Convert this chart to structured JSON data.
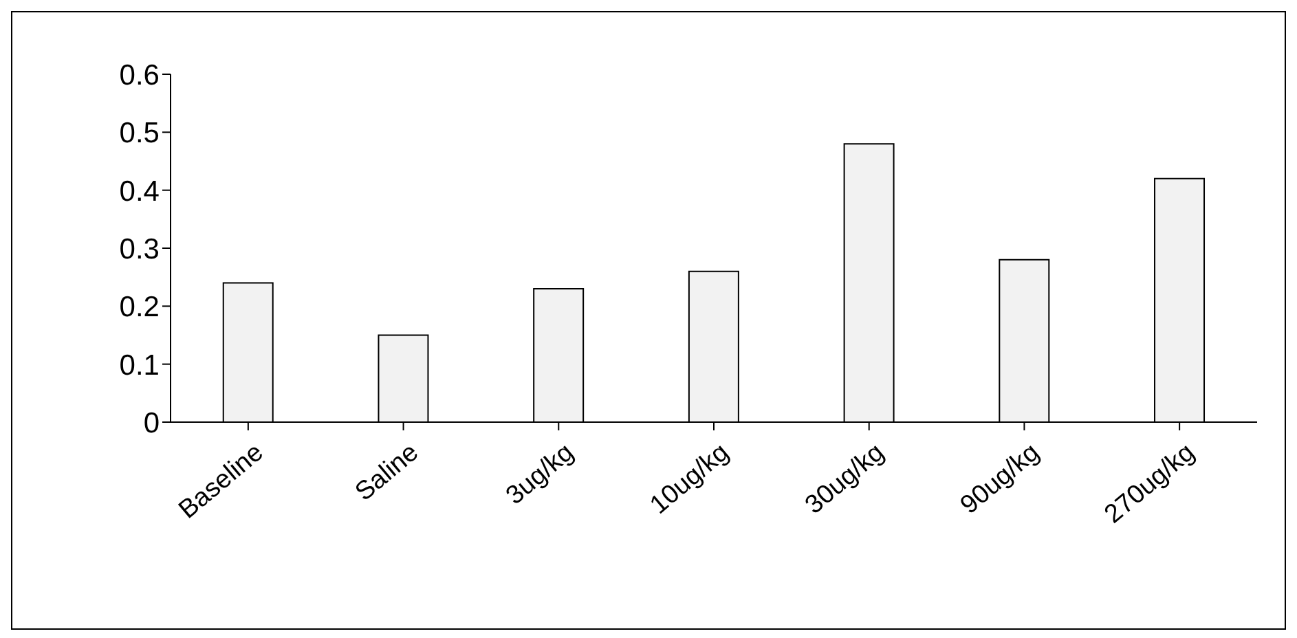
{
  "chart_data": {
    "type": "bar",
    "categories": [
      "Baseline",
      "Saline",
      "3ug/kg",
      "10ug/kg",
      "30ug/kg",
      "90ug/kg",
      "270ug/kg"
    ],
    "values": [
      0.24,
      0.15,
      0.23,
      0.26,
      0.48,
      0.28,
      0.42
    ],
    "color": "#f2f2f2",
    "ylim": [
      0,
      0.6
    ],
    "yticks": [
      0,
      0.1,
      0.2,
      0.3,
      0.4,
      0.5,
      0.6
    ],
    "grid": false,
    "legend": false
  }
}
